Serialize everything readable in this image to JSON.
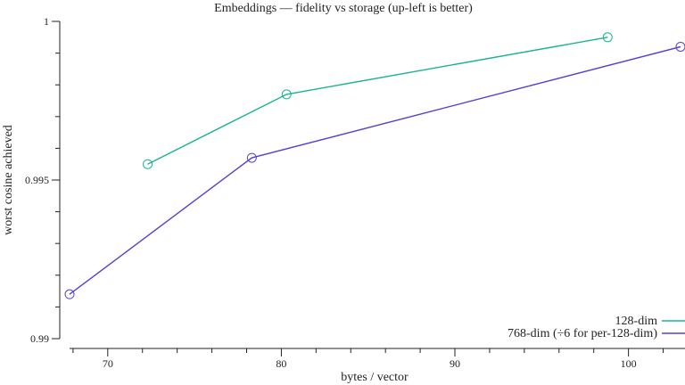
{
  "chart_data": {
    "type": "line",
    "title": "Embeddings — fidelity vs storage (up-left is better)",
    "xlabel": "bytes / vector",
    "ylabel": "worst cosine achieved",
    "xlim": [
      67.8,
      103
    ],
    "ylim": [
      0.99,
      1.0
    ],
    "x_major_ticks": [
      70,
      80,
      90,
      100
    ],
    "x_minor_ticks": [
      68,
      72,
      74,
      76,
      78,
      82,
      84,
      86,
      88,
      92,
      94,
      96,
      98,
      102
    ],
    "y_major_ticks": [
      0.99,
      0.995,
      1.0
    ],
    "y_minor_ticks": [
      0.991,
      0.992,
      0.993,
      0.994,
      0.996,
      0.997,
      0.998,
      0.999
    ],
    "x_tick_labels": [
      "70",
      "80",
      "90",
      "100"
    ],
    "y_tick_labels": [
      "0.99",
      "0.995",
      "1"
    ],
    "grid": false,
    "legend_position": "bottom-right",
    "series": [
      {
        "name": "128-dim",
        "color": "#1bb393",
        "marker": "circle",
        "x": [
          72.3,
          80.3,
          98.8
        ],
        "y": [
          0.9955,
          0.9977,
          0.9995
        ]
      },
      {
        "name": "768-dim (÷6 for per-128-dim)",
        "color": "#5b3fcf",
        "marker": "circle",
        "x": [
          67.8,
          78.3,
          103
        ],
        "y": [
          0.9914,
          0.9957,
          0.9992
        ]
      }
    ]
  }
}
